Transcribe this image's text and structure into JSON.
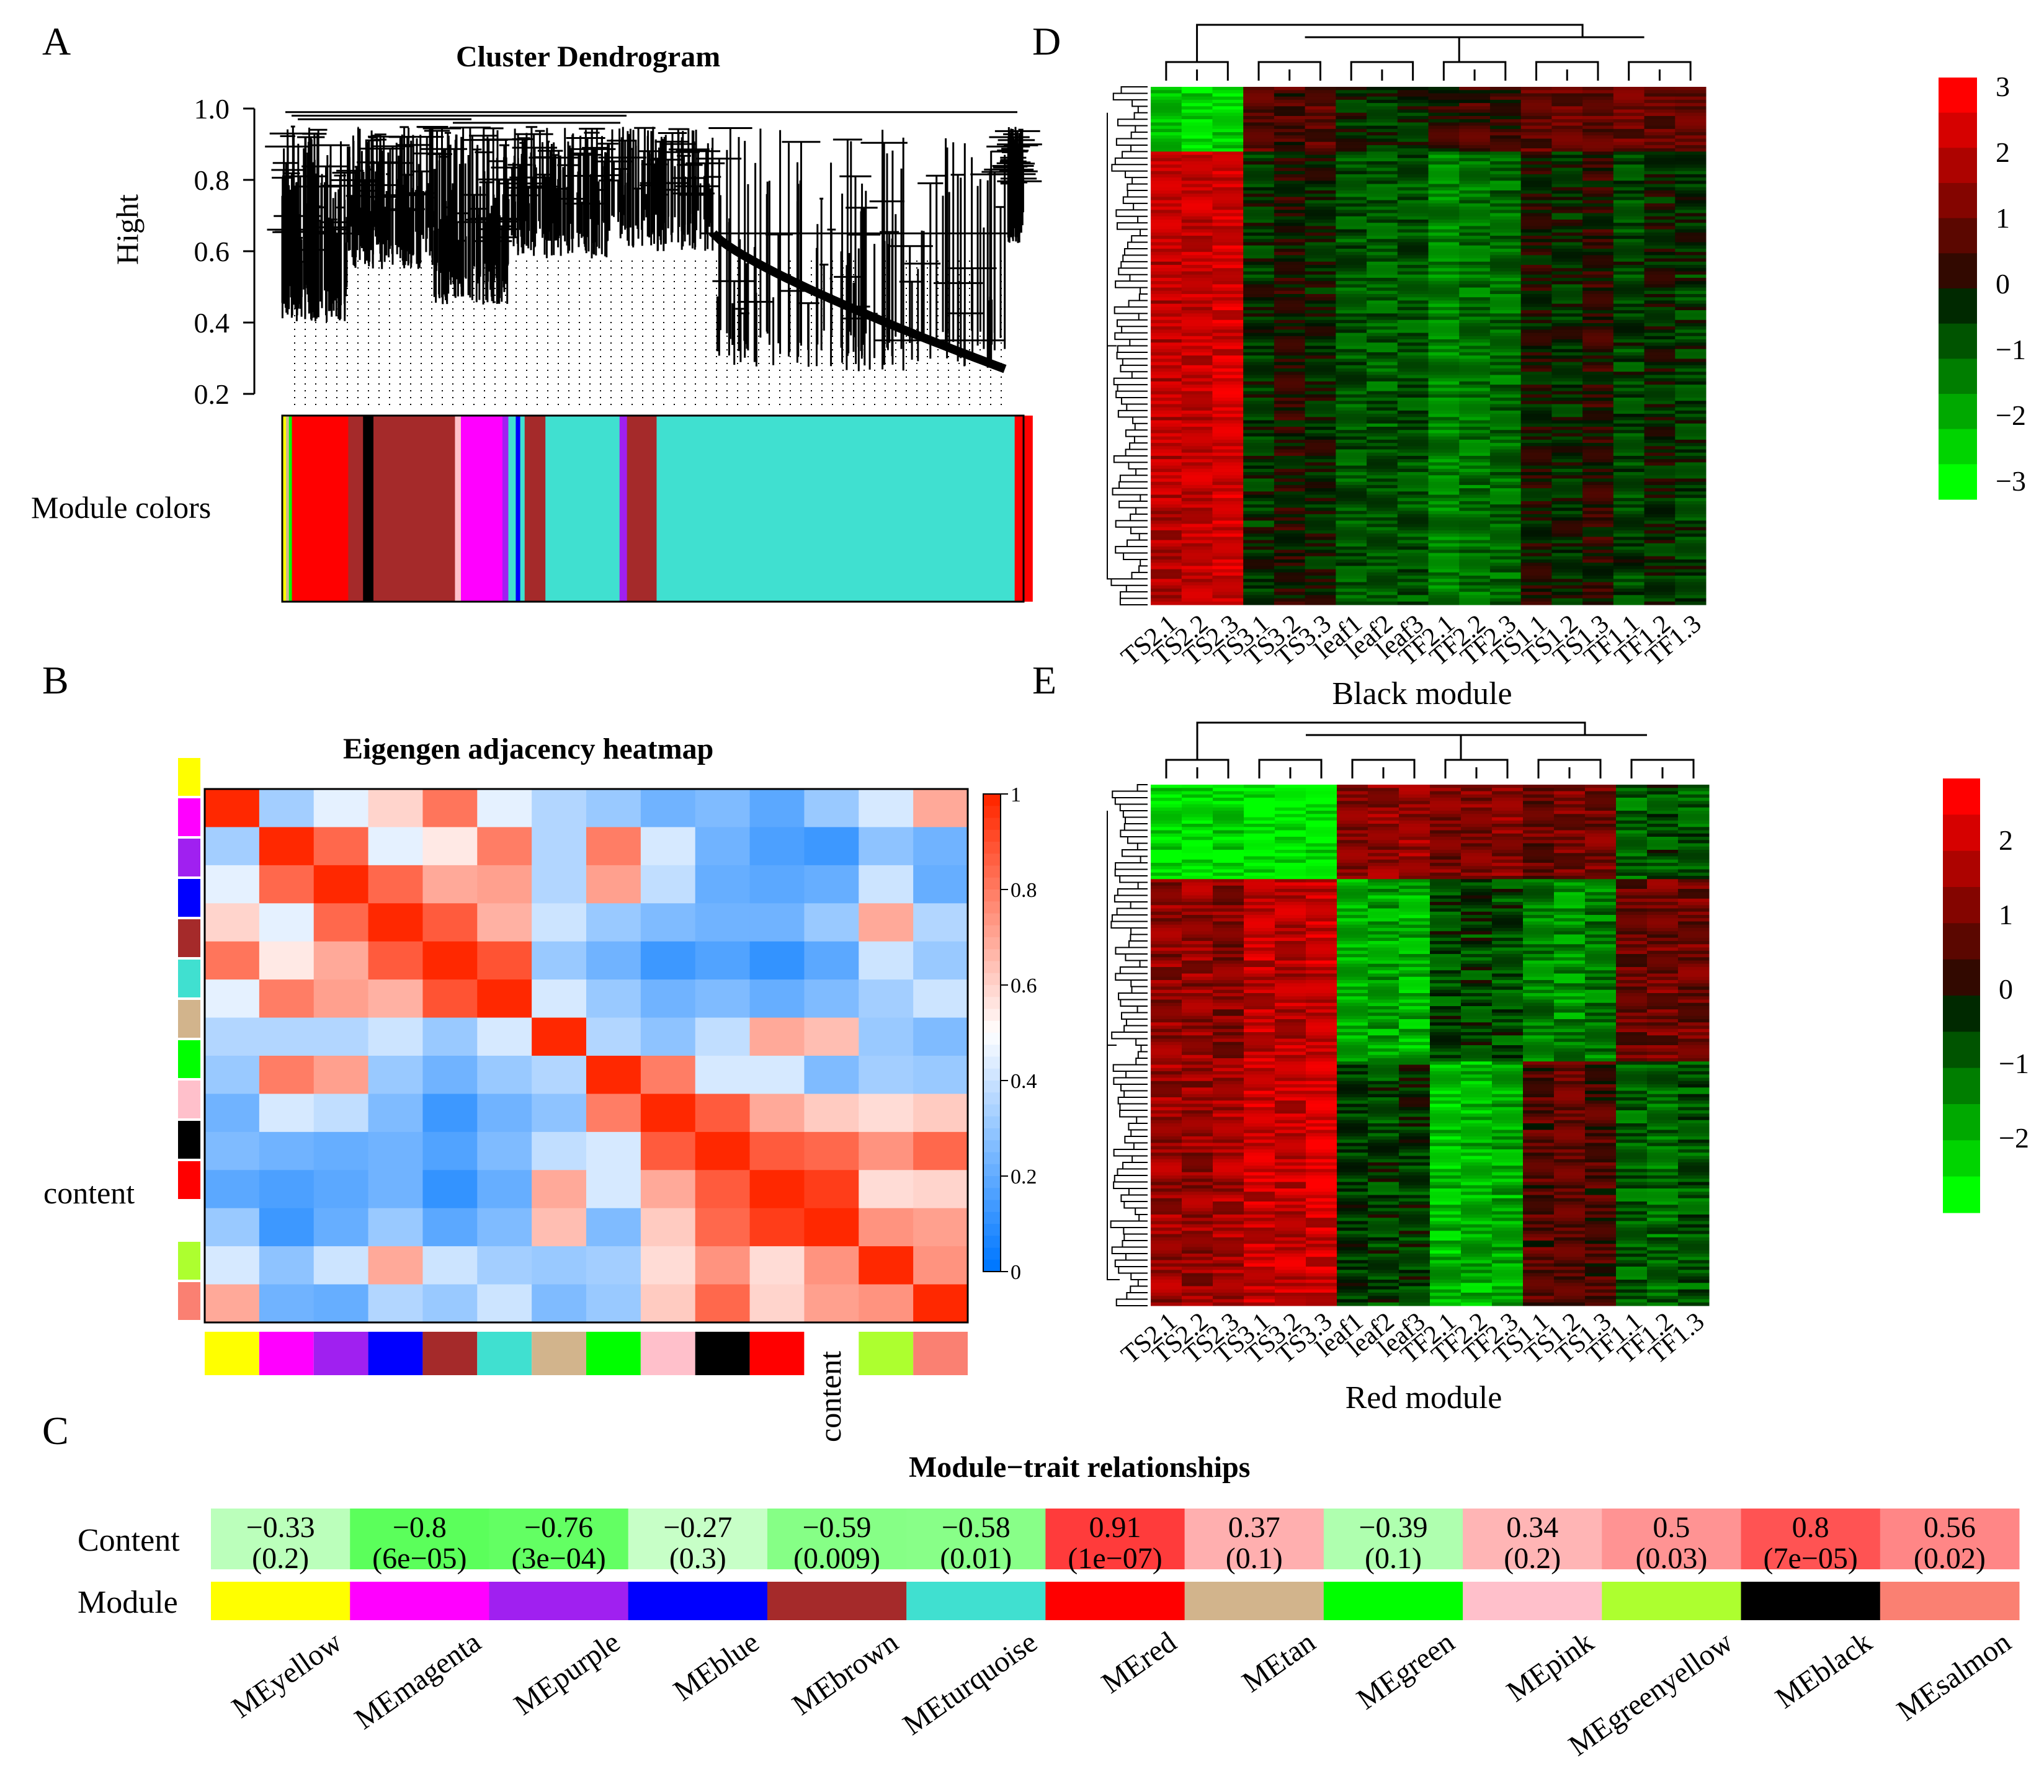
{
  "panels": {
    "A": {
      "letter": "A",
      "title": "Cluster Dendrogram"
    },
    "B": {
      "letter": "B",
      "title": "Eigengen adjacency heatmap"
    },
    "C": {
      "letter": "C",
      "title": "Module−trait relationships"
    },
    "D": {
      "letter": "D",
      "title": "Black module"
    },
    "E": {
      "letter": "E",
      "title": "Red module"
    }
  },
  "colors": {
    "yellow": "#ffff00",
    "magenta": "#ff00ff",
    "purple": "#a020f0",
    "blue": "#0000ff",
    "brown": "#a52a2a",
    "turquoise": "#40e0d0",
    "red": "#ff0000",
    "tan": "#d2b48c",
    "green": "#00ff00",
    "pink": "#ffc0cb",
    "greenyellow": "#adff2f",
    "black": "#000000",
    "salmon": "#fa8072",
    "white": "#ffffff"
  },
  "chart_data": [
    {
      "type": "dendrogram",
      "panel": "A",
      "title": "Cluster Dendrogram",
      "ylabel": "Hight",
      "ylim": [
        0.2,
        1.0
      ],
      "yticks": [
        "0.2",
        "0.4",
        "0.6",
        "0.8",
        "1.0"
      ],
      "color_bar_label": "Module colors",
      "module_colors": [
        {
          "color": "yellow",
          "width": 0.005
        },
        {
          "color": "tan",
          "width": 0.004
        },
        {
          "color": "green",
          "width": 0.004
        },
        {
          "color": "red",
          "width": 0.076
        },
        {
          "color": "brown",
          "width": 0.02
        },
        {
          "color": "black",
          "width": 0.014
        },
        {
          "color": "brown",
          "width": 0.11
        },
        {
          "color": "pink",
          "width": 0.008
        },
        {
          "color": "magenta",
          "width": 0.056
        },
        {
          "color": "purple",
          "width": 0.008
        },
        {
          "color": "turquoise",
          "width": 0.01
        },
        {
          "color": "blue",
          "width": 0.006
        },
        {
          "color": "turquoise",
          "width": 0.006
        },
        {
          "color": "brown",
          "width": 0.028
        },
        {
          "color": "turquoise",
          "width": 0.1
        },
        {
          "color": "purple",
          "width": 0.01
        },
        {
          "color": "brown",
          "width": 0.04
        },
        {
          "color": "turquoise",
          "width": 0.483
        },
        {
          "color": "red",
          "width": 0.024
        }
      ]
    },
    {
      "type": "heatmap",
      "panel": "B",
      "title": "Eigengen adjacency heatmap",
      "row_label": "content",
      "col_label": "content",
      "modules": [
        "yellow",
        "magenta",
        "purple",
        "blue",
        "brown",
        "turquoise",
        "tan",
        "green",
        "pink",
        "black",
        "red",
        "white",
        "greenyellow",
        "salmon"
      ],
      "colorbar_ticks": [
        "0",
        "0.2",
        "0.4",
        "0.6",
        "0.8",
        "1"
      ],
      "values": [
        [
          1.0,
          0.32,
          0.45,
          0.6,
          0.82,
          0.45,
          0.35,
          0.3,
          0.22,
          0.25,
          0.18,
          0.3,
          0.42,
          0.7
        ],
        [
          0.32,
          1.0,
          0.85,
          0.45,
          0.55,
          0.8,
          0.35,
          0.8,
          0.42,
          0.22,
          0.15,
          0.12,
          0.28,
          0.22
        ],
        [
          0.45,
          0.85,
          1.0,
          0.85,
          0.7,
          0.72,
          0.35,
          0.72,
          0.38,
          0.2,
          0.18,
          0.2,
          0.4,
          0.2
        ],
        [
          0.6,
          0.45,
          0.85,
          1.0,
          0.88,
          0.68,
          0.4,
          0.3,
          0.25,
          0.22,
          0.22,
          0.3,
          0.7,
          0.35
        ],
        [
          0.82,
          0.55,
          0.7,
          0.88,
          1.0,
          0.9,
          0.3,
          0.22,
          0.12,
          0.16,
          0.1,
          0.18,
          0.4,
          0.3
        ],
        [
          0.45,
          0.8,
          0.72,
          0.68,
          0.9,
          1.0,
          0.42,
          0.3,
          0.22,
          0.25,
          0.2,
          0.25,
          0.32,
          0.4
        ],
        [
          0.35,
          0.35,
          0.35,
          0.4,
          0.3,
          0.42,
          1.0,
          0.35,
          0.28,
          0.38,
          0.7,
          0.65,
          0.3,
          0.25
        ],
        [
          0.3,
          0.8,
          0.72,
          0.3,
          0.22,
          0.3,
          0.35,
          1.0,
          0.8,
          0.42,
          0.42,
          0.25,
          0.32,
          0.3
        ],
        [
          0.22,
          0.42,
          0.38,
          0.25,
          0.12,
          0.22,
          0.28,
          0.8,
          1.0,
          0.88,
          0.7,
          0.62,
          0.58,
          0.62
        ],
        [
          0.25,
          0.22,
          0.2,
          0.22,
          0.16,
          0.25,
          0.38,
          0.42,
          0.88,
          1.0,
          0.88,
          0.85,
          0.75,
          0.85
        ],
        [
          0.18,
          0.15,
          0.18,
          0.22,
          0.1,
          0.2,
          0.7,
          0.42,
          0.7,
          0.88,
          1.0,
          0.95,
          0.58,
          0.6
        ],
        [
          0.3,
          0.12,
          0.2,
          0.3,
          0.18,
          0.25,
          0.65,
          0.25,
          0.62,
          0.85,
          0.95,
          1.0,
          0.75,
          0.72
        ],
        [
          0.42,
          0.28,
          0.4,
          0.7,
          0.4,
          0.32,
          0.3,
          0.32,
          0.58,
          0.75,
          0.58,
          0.75,
          1.0,
          0.75
        ],
        [
          0.7,
          0.22,
          0.2,
          0.35,
          0.3,
          0.4,
          0.25,
          0.3,
          0.62,
          0.85,
          0.6,
          0.72,
          0.75,
          1.0
        ]
      ]
    },
    {
      "type": "heatmap",
      "panel": "C",
      "title": "Module−trait relationships",
      "row_labels": [
        "Content",
        "Module"
      ],
      "categories": [
        "MEyellow",
        "MEmagenta",
        "MEpurple",
        "MEblue",
        "MEbrown",
        "MEturquoise",
        "MEred",
        "MEtan",
        "MEgreen",
        "MEpink",
        "MEgreenyellow",
        "MEblack",
        "MEsalmon"
      ],
      "module_colors": [
        "yellow",
        "magenta",
        "purple",
        "blue",
        "brown",
        "turquoise",
        "red",
        "tan",
        "green",
        "pink",
        "greenyellow",
        "black",
        "salmon"
      ],
      "correlations": [
        "−0.33",
        "−0.8",
        "−0.76",
        "−0.27",
        "−0.59",
        "−0.58",
        "0.91",
        "0.37",
        "−0.39",
        "0.34",
        "0.5",
        "0.8",
        "0.56"
      ],
      "pvalues": [
        "(0.2)",
        "(6e−05)",
        "(3e−04)",
        "(0.3)",
        "(0.009)",
        "(0.01)",
        "(1e−07)",
        "(0.1)",
        "(0.1)",
        "(0.2)",
        "(0.03)",
        "(7e−05)",
        "(0.02)"
      ]
    },
    {
      "type": "heatmap",
      "panel": "D",
      "title": "Black module",
      "samples": [
        "TS2.1",
        "TS2.2",
        "TS2.3",
        "TS3.1",
        "TS3.2",
        "TS3.3",
        "leaf1",
        "leaf2",
        "leaf3",
        "TF2.1",
        "TF2.2",
        "TF2.3",
        "TS1.1",
        "TS1.2",
        "TS1.3",
        "TF1.1",
        "TF1.2",
        "TF1.3"
      ],
      "colorbar_ticks": [
        "3",
        "2",
        "1",
        "0",
        "−1",
        "−2",
        "−3"
      ],
      "gene_blocks": [
        {
          "fraction": 0.12,
          "levels": [
            -2.4,
            -2.5,
            -2.4,
            0.8,
            0.6,
            0.8,
            -0.3,
            -0.4,
            -0.2,
            0.3,
            0.5,
            0.4,
            0.8,
            0.9,
            0.8,
            1.0,
            0.9,
            1.0
          ]
        },
        {
          "fraction": 0.88,
          "levels": [
            2.0,
            2.2,
            2.4,
            -0.4,
            0.1,
            -0.2,
            -0.8,
            -0.9,
            -0.8,
            -1.4,
            -1.2,
            -1.1,
            0.0,
            -0.3,
            0.2,
            -0.6,
            -0.2,
            -0.5
          ]
        }
      ]
    },
    {
      "type": "heatmap",
      "panel": "E",
      "title": "Red module",
      "samples": [
        "TS2.1",
        "TS2.2",
        "TS2.3",
        "TS3.1",
        "TS3.2",
        "TS3.3",
        "leaf1",
        "leaf2",
        "leaf3",
        "TF2.1",
        "TF2.2",
        "TF2.3",
        "TS1.1",
        "TS1.2",
        "TS1.3",
        "TF1.1",
        "TF1.2",
        "TF1.3"
      ],
      "colorbar_ticks": [
        "2",
        "1",
        "0",
        "−1",
        "−2"
      ],
      "gene_blocks": [
        {
          "fraction": 0.18,
          "levels": [
            -2.2,
            -2.2,
            -2.1,
            -2.3,
            -2.3,
            -2.2,
            1.2,
            1.3,
            1.4,
            1.0,
            1.1,
            1.2,
            0.8,
            1.0,
            0.9,
            -0.8,
            -0.6,
            -0.7
          ]
        },
        {
          "fraction": 0.35,
          "levels": [
            1.2,
            1.3,
            1.1,
            1.8,
            1.7,
            1.9,
            -1.6,
            -1.5,
            -1.7,
            -0.6,
            -0.5,
            -0.6,
            -1.2,
            -1.3,
            -1.1,
            0.8,
            0.9,
            0.9
          ]
        },
        {
          "fraction": 0.47,
          "levels": [
            1.4,
            1.3,
            1.5,
            1.9,
            1.8,
            2.0,
            -0.4,
            -0.5,
            -0.4,
            -1.8,
            -1.7,
            -1.6,
            0.6,
            0.7,
            0.5,
            -0.8,
            -0.9,
            -0.7
          ]
        }
      ]
    }
  ]
}
